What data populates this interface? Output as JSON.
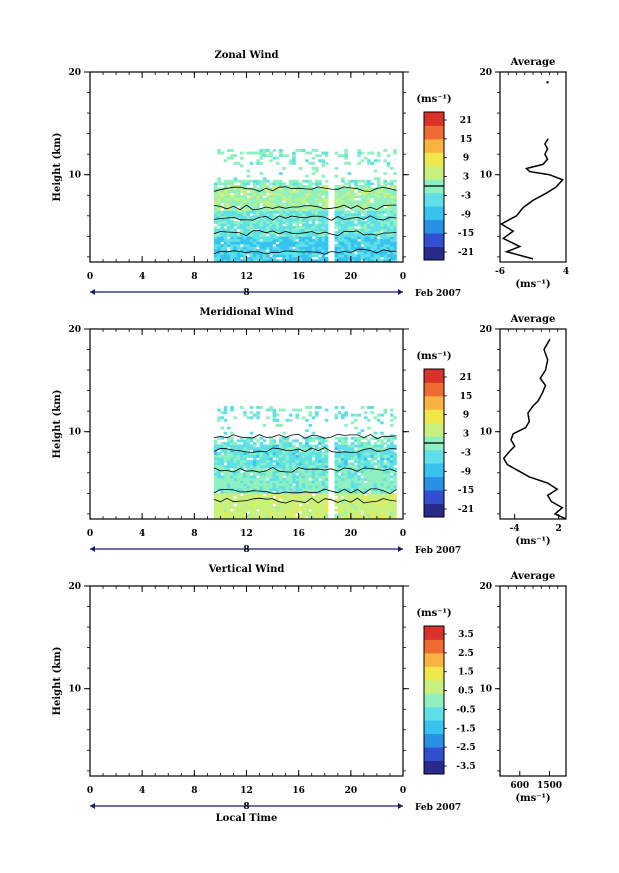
{
  "figure": {
    "date_label": "Feb 2007",
    "day_label": "8",
    "x_axis_title": "Local Time",
    "x_ticks": [
      "0",
      "4",
      "8",
      "12",
      "16",
      "20",
      "0"
    ],
    "y_ticks": [
      "20",
      "10"
    ],
    "y_label": "Height (km)",
    "avg_title": "Average",
    "unit_label": "(ms⁻¹)"
  },
  "panels": [
    {
      "key": "zonal",
      "title": "Zonal Wind",
      "colorbar_ticks": [
        "21",
        "15",
        "9",
        "3",
        "-3",
        "-9",
        "-15",
        "-21"
      ],
      "avg_x_ticks": [
        "-6",
        "4"
      ],
      "avg_xlim": [
        -6,
        4
      ]
    },
    {
      "key": "meridional",
      "title": "Meridional Wind",
      "colorbar_ticks": [
        "21",
        "15",
        "9",
        "3",
        "-3",
        "-9",
        "-15",
        "-21"
      ],
      "avg_x_ticks": [
        "-4",
        "2"
      ],
      "avg_xlim": [
        -6,
        3
      ]
    },
    {
      "key": "vertical",
      "title": "Vertical Wind",
      "colorbar_ticks": [
        "3.5",
        "2.5",
        "1.5",
        "0.5",
        "-0.5",
        "-1.5",
        "-2.5",
        "-3.5"
      ],
      "avg_x_ticks": [
        "600",
        "1500"
      ],
      "avg_xlim": [
        0,
        2000
      ]
    }
  ],
  "colors": {
    "colormap": [
      "#2a2a8c",
      "#3050d0",
      "#2a8fe6",
      "#36c3f0",
      "#5ee0e6",
      "#8ff0c0",
      "#c8f07c",
      "#f0e84a",
      "#f8b440",
      "#f06a34",
      "#d8322a"
    ]
  },
  "chart_data": [
    {
      "type": "heatmap",
      "title": "Zonal Wind",
      "xlabel": "",
      "ylabel": "Height (km)",
      "xlim": [
        0,
        24
      ],
      "ylim": [
        1.5,
        20
      ],
      "clim": [
        -24,
        24
      ],
      "data_time_range": [
        9.5,
        23.5
      ],
      "data_height_range": [
        1.5,
        12.5
      ],
      "gap_time": 18.3,
      "profile": [
        [
          1.8,
          -1
        ],
        [
          2.5,
          -5
        ],
        [
          3,
          -3
        ],
        [
          3.8,
          -5.5
        ],
        [
          4.5,
          -4
        ],
        [
          5.2,
          -5.8
        ],
        [
          6,
          -3.5
        ],
        [
          6.8,
          -2.5
        ],
        [
          7.5,
          -1
        ],
        [
          8.2,
          1
        ],
        [
          8.8,
          2.5
        ],
        [
          9.5,
          3.5
        ],
        [
          10,
          1.5
        ],
        [
          10.3,
          -1.5
        ],
        [
          10.6,
          -2
        ],
        [
          11,
          0.5
        ],
        [
          11.5,
          1.2
        ],
        [
          12,
          0.8
        ],
        [
          12.5,
          1.2
        ],
        [
          13,
          0.8
        ],
        [
          13.5,
          1.3
        ]
      ],
      "profile_extra": [
        [
          19,
          1.2
        ]
      ]
    },
    {
      "type": "heatmap",
      "title": "Meridional Wind",
      "xlabel": "",
      "ylabel": "Height (km)",
      "xlim": [
        0,
        24
      ],
      "ylim": [
        1.5,
        20
      ],
      "clim": [
        -24,
        24
      ],
      "data_time_range": [
        9.5,
        23.5
      ],
      "data_height_range": [
        1.5,
        12.5
      ],
      "gap_time": 18.3,
      "profile": [
        [
          1.5,
          3
        ],
        [
          2,
          1.5
        ],
        [
          2.6,
          2.5
        ],
        [
          3.2,
          1
        ],
        [
          3.8,
          0.5
        ],
        [
          4.4,
          1.8
        ],
        [
          5,
          0.5
        ],
        [
          5.6,
          -2
        ],
        [
          6.2,
          -3.5
        ],
        [
          6.8,
          -5
        ],
        [
          7.4,
          -5.5
        ],
        [
          8,
          -4.8
        ],
        [
          8.6,
          -4
        ],
        [
          9.2,
          -4.5
        ],
        [
          9.8,
          -4.2
        ],
        [
          10.4,
          -2.5
        ],
        [
          11,
          -2
        ],
        [
          11.8,
          -2.2
        ],
        [
          12.5,
          -1.5
        ],
        [
          13,
          -0.8
        ],
        [
          13.8,
          -0.2
        ],
        [
          14.5,
          0.2
        ],
        [
          15.2,
          -0.5
        ],
        [
          16,
          0.2
        ],
        [
          17,
          0.5
        ],
        [
          18,
          0
        ],
        [
          19,
          0.8
        ]
      ]
    },
    {
      "type": "heatmap",
      "title": "Vertical Wind",
      "xlabel": "Local Time",
      "ylabel": "Height (km)",
      "xlim": [
        0,
        24
      ],
      "ylim": [
        1.5,
        20
      ],
      "clim": [
        -4,
        4
      ]
    }
  ]
}
